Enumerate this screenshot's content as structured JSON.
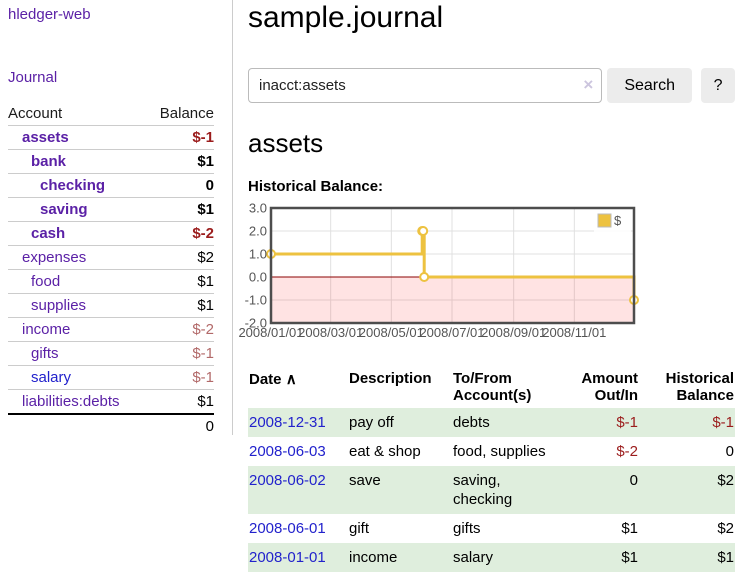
{
  "brand": {
    "label": "hledger-web"
  },
  "sidebar": {
    "journal_link": "Journal",
    "accounts": {
      "account_header": "Account",
      "balance_header": "Balance",
      "rows": [
        {
          "name": "assets",
          "balance": "$-1",
          "indent": 1,
          "bold": true,
          "unvisited": false
        },
        {
          "name": "bank",
          "balance": "$1",
          "indent": 2,
          "bold": true,
          "unvisited": false
        },
        {
          "name": "checking",
          "balance": "0",
          "indent": 3,
          "bold": true,
          "unvisited": false
        },
        {
          "name": "saving",
          "balance": "$1",
          "indent": 3,
          "bold": true,
          "unvisited": false
        },
        {
          "name": "cash",
          "balance": "$-2",
          "indent": 2,
          "bold": true,
          "unvisited": false
        },
        {
          "name": "expenses",
          "balance": "$2",
          "indent": 1,
          "bold": false,
          "unvisited": false
        },
        {
          "name": "food",
          "balance": "$1",
          "indent": 2,
          "bold": false,
          "unvisited": false
        },
        {
          "name": "supplies",
          "balance": "$1",
          "indent": 2,
          "bold": false,
          "unvisited": false
        },
        {
          "name": "income",
          "balance": "$-2",
          "indent": 1,
          "bold": false,
          "unvisited": false
        },
        {
          "name": "gifts",
          "balance": "$-1",
          "indent": 2,
          "bold": false,
          "unvisited": false
        },
        {
          "name": "salary",
          "balance": "$-1",
          "indent": 2,
          "bold": false,
          "unvisited": true
        },
        {
          "name": "liabilities:debts",
          "balance": "$1",
          "indent": 1,
          "bold": false,
          "unvisited": false
        }
      ],
      "total": "0"
    }
  },
  "page": {
    "title": "sample.journal",
    "account_title": "assets",
    "chart_heading": "Historical Balance:"
  },
  "search": {
    "value": "inacct:assets",
    "clear_icon": "×",
    "search_button": "Search",
    "help_button": "?"
  },
  "chart_data": {
    "type": "line",
    "step": true,
    "series": [
      {
        "name": "$",
        "color": "#edc240",
        "marker_fill": "#ffffff",
        "points": [
          [
            "2008-01-01",
            1.0
          ],
          [
            "2008-06-01",
            2.0
          ],
          [
            "2008-06-02",
            2.0
          ],
          [
            "2008-06-03",
            0.0
          ],
          [
            "2008-12-31",
            -1.0
          ]
        ]
      }
    ],
    "ylim": [
      -2.0,
      3.0
    ],
    "yticks": [
      3.0,
      2.0,
      1.0,
      0.0,
      -1.0,
      -2.0
    ],
    "ytick_labels": [
      "3.0",
      "2.0",
      "1.0",
      "0.0",
      "-1.0",
      "-2.0"
    ],
    "xlim": [
      "2008-01-01",
      "2008-12-31"
    ],
    "xticks": [
      "2008/01/01",
      "2008/03/01",
      "2008/05/01",
      "2008/07/01",
      "2008/09/01",
      "2008/11/01"
    ],
    "legend": {
      "label": "$",
      "position": "top-right",
      "box_color": "#edc240",
      "box_border": "#bbbbbb"
    },
    "grid_color": "#e0e0e0",
    "border_color": "#4d4d4d",
    "zero_line_color": "#8b0000",
    "negative_region": {
      "fill": "#ff0000",
      "opacity": 0.11
    }
  },
  "register": {
    "headers": {
      "date": "Date",
      "sort_icon": "∧",
      "description": "Description",
      "accounts": "To/From\nAccount(s)",
      "amount": "Amount\nOut/In",
      "balance": "Historical\nBalance"
    },
    "rows": [
      {
        "date": "2008-12-31",
        "description": "pay off",
        "accounts": "debts",
        "amount": "$-1",
        "balance": "$-1"
      },
      {
        "date": "2008-06-03",
        "description": "eat & shop",
        "accounts": "food, supplies",
        "amount": "$-2",
        "balance": "0"
      },
      {
        "date": "2008-06-02",
        "description": "save",
        "accounts": "saving, checking",
        "amount": "0",
        "balance": "$2"
      },
      {
        "date": "2008-06-01",
        "description": "gift",
        "accounts": "gifts",
        "amount": "$1",
        "balance": "$2"
      },
      {
        "date": "2008-01-01",
        "description": "income",
        "accounts": "salary",
        "amount": "$1",
        "balance": "$1"
      }
    ]
  }
}
